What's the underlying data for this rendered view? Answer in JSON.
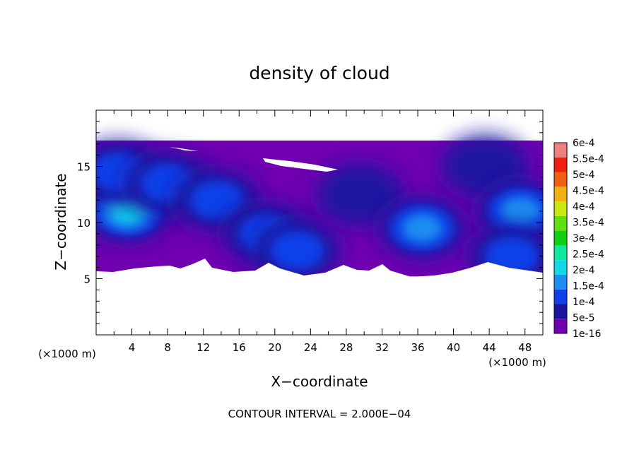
{
  "chart_data": {
    "type": "heatmap",
    "title": "density of cloud",
    "xlabel": "X−coordinate",
    "ylabel": "Z−coordinate",
    "x_unit_left": "(×1000 m)",
    "x_unit_right": "(×1000 m)",
    "xlim": [
      0,
      50
    ],
    "ylim": [
      0,
      20
    ],
    "x_ticks": [
      4,
      8,
      12,
      16,
      20,
      24,
      28,
      32,
      36,
      40,
      44,
      48
    ],
    "y_ticks": [
      5,
      10,
      15
    ],
    "cloud_band_z": [
      5.2,
      17.3
    ],
    "colorbar": {
      "labels": [
        "1e-16",
        "5e-5",
        "1e-4",
        "1.5e-4",
        "2e-4",
        "2.5e-4",
        "3e-4",
        "3.5e-4",
        "4e-4",
        "4.5e-4",
        "5e-4",
        "5.5e-4",
        "6e-4"
      ],
      "colors": [
        "#7000b0",
        "#1a14a0",
        "#1040e8",
        "#1c8cf0",
        "#10d8e8",
        "#10e8a0",
        "#10d010",
        "#60e010",
        "#c8e810",
        "#f0b010",
        "#f06010",
        "#f02010",
        "#f08080"
      ]
    },
    "blobs": [
      {
        "x": 3.5,
        "z": 11.0,
        "level": 4
      },
      {
        "x": 2.5,
        "z": 14.5,
        "level": 2
      },
      {
        "x": 8.0,
        "z": 13.5,
        "level": 2
      },
      {
        "x": 13.5,
        "z": 12.0,
        "level": 2
      },
      {
        "x": 19.0,
        "z": 9.0,
        "level": 2
      },
      {
        "x": 22.5,
        "z": 7.5,
        "level": 2
      },
      {
        "x": 29.5,
        "z": 12.5,
        "level": 1
      },
      {
        "x": 36.5,
        "z": 9.5,
        "level": 3
      },
      {
        "x": 43.5,
        "z": 15.0,
        "level": 1
      },
      {
        "x": 47.5,
        "z": 11.0,
        "level": 3
      },
      {
        "x": 46.5,
        "z": 7.0,
        "level": 2
      }
    ],
    "footer": "CONTOUR INTERVAL = 2.000E−04"
  }
}
